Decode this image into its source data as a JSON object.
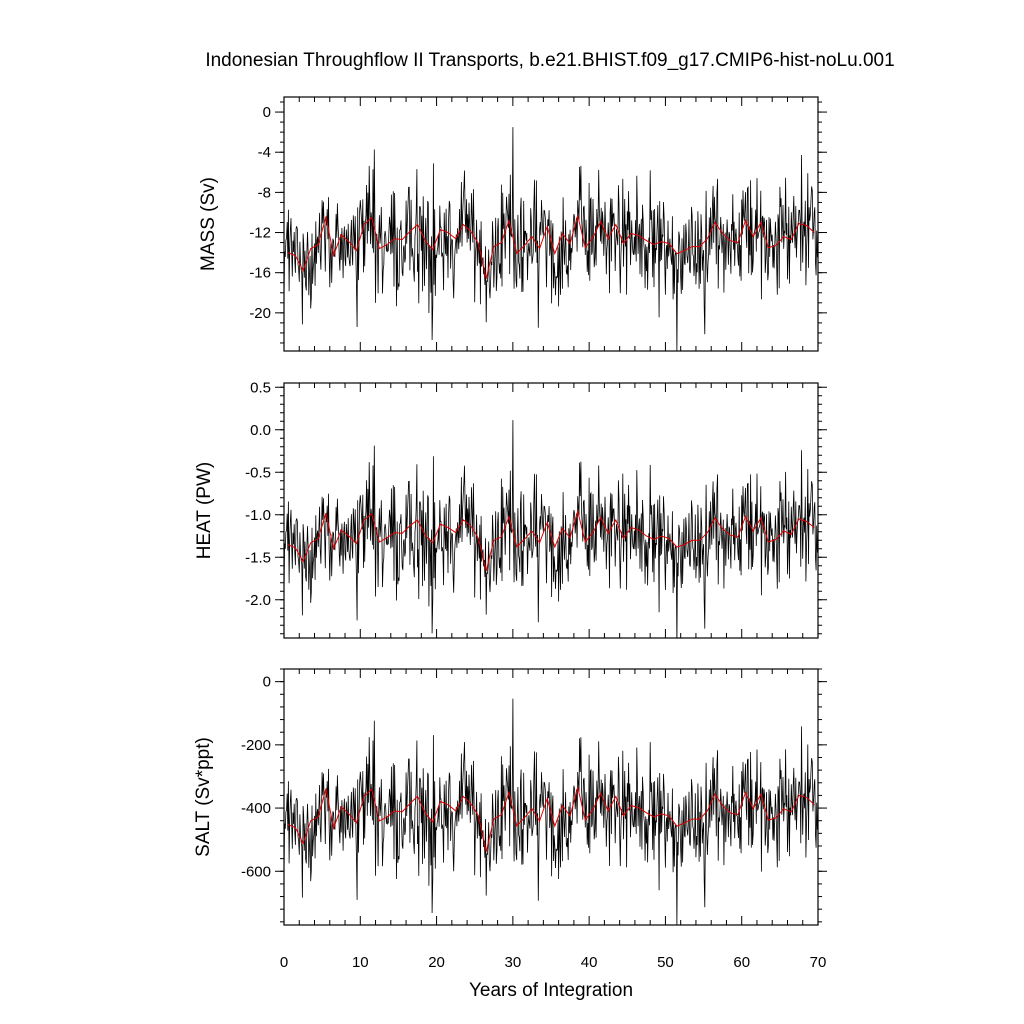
{
  "title": "Indonesian Throughflow II Transports, b.e21.BHIST.f09_g17.CMIP6-hist-noLu.001",
  "colors": {
    "raw": "#000000",
    "smoothed": "#e00000"
  },
  "chart_data": [
    {
      "type": "line",
      "ylabel": "MASS (Sv)",
      "xlabel": "",
      "xlim": [
        0,
        70
      ],
      "ylim": [
        -23.8,
        1.5
      ],
      "yticks": [
        0,
        -4,
        -8,
        -12,
        -16,
        -20
      ],
      "ytick_labels": [
        "0",
        "-4",
        "-8",
        "-12",
        "-16",
        "-20"
      ],
      "xticks": [
        0,
        10,
        20,
        30,
        40,
        50,
        60,
        70
      ],
      "minor_y_step": 1,
      "annual_mean_values": [
        -14.0,
        -14.3,
        -15.8,
        -13.6,
        -13.2,
        -10.4,
        -14.3,
        -12.2,
        -12.9,
        -13.8,
        -11.2,
        -10.5,
        -13.6,
        -13.2,
        -12.6,
        -12.7,
        -11.9,
        -11.2,
        -12.8,
        -13.7,
        -11.7,
        -12.0,
        -12.6,
        -11.2,
        -11.9,
        -13.1,
        -16.6,
        -13.4,
        -13.0,
        -10.8,
        -14.1,
        -13.3,
        -12.4,
        -13.6,
        -11.4,
        -14.1,
        -12.1,
        -13.1,
        -10.3,
        -13.5,
        -12.5,
        -10.9,
        -12.6,
        -11.2,
        -13.1,
        -12.1,
        -12.3,
        -12.8,
        -13.2,
        -12.9,
        -13.1,
        -14.1,
        -13.8,
        -13.4,
        -13.4,
        -12.6,
        -11.0,
        -12.1,
        -12.8,
        -13.0,
        -10.8,
        -12.4,
        -11.0,
        -13.5,
        -13.3,
        -12.4,
        -12.7,
        -11.1,
        -11.3,
        -12.0
      ]
    },
    {
      "type": "line",
      "ylabel": "HEAT (PW)",
      "xlabel": "",
      "xlim": [
        0,
        70
      ],
      "ylim": [
        -2.45,
        0.55
      ],
      "yticks": [
        0.5,
        0.0,
        -0.5,
        -1.0,
        -1.5,
        -2.0
      ],
      "ytick_labels": [
        "0.5",
        "0.0",
        "-0.5",
        "-1.0",
        "-1.5",
        "-2.0"
      ],
      "xticks": [
        0,
        10,
        20,
        30,
        40,
        50,
        60,
        70
      ],
      "minor_y_step": 0.1,
      "annual_mean_values": [
        -1.35,
        -1.39,
        -1.55,
        -1.33,
        -1.28,
        -0.98,
        -1.4,
        -1.18,
        -1.25,
        -1.34,
        -1.06,
        -0.99,
        -1.32,
        -1.27,
        -1.21,
        -1.22,
        -1.13,
        -1.06,
        -1.24,
        -1.33,
        -1.11,
        -1.15,
        -1.21,
        -1.06,
        -1.13,
        -1.28,
        -1.66,
        -1.3,
        -1.26,
        -1.02,
        -1.38,
        -1.29,
        -1.19,
        -1.33,
        -1.09,
        -1.38,
        -1.16,
        -1.27,
        -0.96,
        -1.32,
        -1.21,
        -1.03,
        -1.22,
        -1.06,
        -1.28,
        -1.15,
        -1.18,
        -1.25,
        -1.29,
        -1.25,
        -1.28,
        -1.38,
        -1.35,
        -1.3,
        -1.3,
        -1.21,
        -1.04,
        -1.17,
        -1.24,
        -1.26,
        -1.02,
        -1.19,
        -1.04,
        -1.32,
        -1.29,
        -1.19,
        -1.23,
        -1.05,
        -1.08,
        -1.15
      ]
    },
    {
      "type": "line",
      "ylabel": "SALT (Sv*ppt)",
      "xlabel": "Years of Integration",
      "xlim": [
        0,
        70
      ],
      "ylim": [
        -770,
        40
      ],
      "yticks": [
        0,
        -200,
        -400,
        -600
      ],
      "ytick_labels": [
        "0",
        "-200",
        "-400",
        "-600"
      ],
      "xticks": [
        0,
        10,
        20,
        30,
        40,
        50,
        60,
        70
      ],
      "xtick_labels": [
        "0",
        "10",
        "20",
        "30",
        "40",
        "50",
        "60",
        "70"
      ],
      "minor_y_step": 40,
      "annual_mean_values": [
        -452,
        -462,
        -512,
        -440,
        -428,
        -338,
        -464,
        -396,
        -418,
        -447,
        -363,
        -340,
        -441,
        -428,
        -409,
        -412,
        -386,
        -363,
        -415,
        -444,
        -379,
        -389,
        -409,
        -363,
        -386,
        -425,
        -538,
        -435,
        -421,
        -350,
        -457,
        -431,
        -402,
        -441,
        -370,
        -457,
        -392,
        -425,
        -334,
        -438,
        -405,
        -353,
        -409,
        -363,
        -425,
        -392,
        -399,
        -415,
        -428,
        -418,
        -425,
        -457,
        -447,
        -435,
        -435,
        -409,
        -356,
        -392,
        -415,
        -421,
        -350,
        -402,
        -356,
        -438,
        -431,
        -402,
        -412,
        -360,
        -366,
        -389
      ]
    }
  ]
}
